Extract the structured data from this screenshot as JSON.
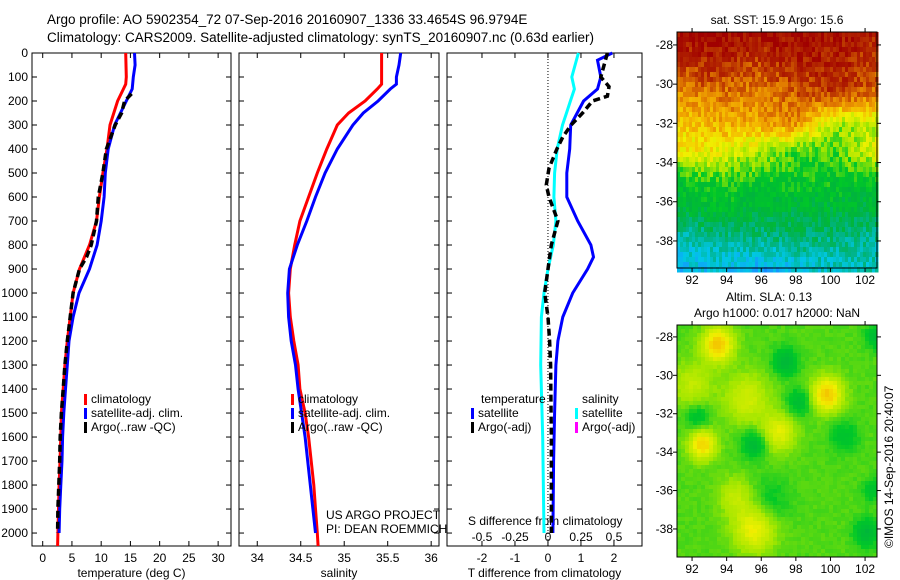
{
  "header": {
    "line1": "Argo profile: AO 5902354_72 07-Sep-2016 20160907_1336 33.4654S 96.9794E",
    "line2": "Climatology: CARS2009. Satellite-adjusted climatology: synTS_20160907.nc (0.63d earlier)"
  },
  "credits": {
    "project": "US ARGO PROJECT",
    "pi": "PI: DEAN ROEMMICH",
    "copyright": "©IMOS 14-Sep-2016 20:40:07"
  },
  "chart_data": [
    {
      "id": "temperature",
      "type": "line",
      "xlabel": "temperature (deg C)",
      "ylabel": "",
      "xlim": [
        -1.83,
        32.2
      ],
      "ylim": [
        0,
        2054
      ],
      "y_reversed": true,
      "xticks": [
        0,
        5,
        10,
        15,
        20,
        25,
        30
      ],
      "xticklabels": [
        "0",
        "5",
        "10",
        "15",
        "20",
        "25",
        "30"
      ],
      "yticks": [
        0,
        100,
        200,
        300,
        400,
        500,
        600,
        700,
        800,
        900,
        1000,
        1100,
        1200,
        1300,
        1400,
        1500,
        1600,
        1700,
        1800,
        1900,
        2000
      ],
      "yticklabels": [
        "0",
        "100",
        "200",
        "300",
        "400",
        "500",
        "600",
        "700",
        "800",
        "900",
        "1000",
        "1100",
        "1200",
        "1300",
        "1400",
        "1500",
        "1600",
        "1700",
        "1800",
        "1900",
        "2000"
      ],
      "legend": [
        "climatology",
        "satellite-adj. clim.",
        "Argo(..raw -QC)"
      ],
      "series": [
        {
          "name": "climatology",
          "color": "#ff0000",
          "dashed": false,
          "depth": [
            0,
            100,
            130,
            150,
            200,
            300,
            400,
            500,
            600,
            700,
            800,
            900,
            1000,
            1100,
            1200,
            1300,
            1400,
            1500,
            1600,
            1700,
            1800,
            1900,
            2000,
            2054
          ],
          "values": [
            14.2,
            14.3,
            14.2,
            13.8,
            12.8,
            11.5,
            11.0,
            10.3,
            9.7,
            9.2,
            8.0,
            6.3,
            5.2,
            4.7,
            4.2,
            3.8,
            3.5,
            3.2,
            3.1,
            2.95,
            2.8,
            2.7,
            2.6,
            2.55
          ]
        },
        {
          "name": "satellite-adj. clim.",
          "color": "#0000ff",
          "dashed": false,
          "depth": [
            0,
            50,
            100,
            150,
            200,
            300,
            400,
            500,
            600,
            700,
            800,
            900,
            1000,
            1100,
            1200,
            1300,
            1400,
            1500,
            1600,
            1700,
            1800,
            1900,
            2000
          ],
          "values": [
            15.7,
            15.8,
            15.5,
            15.3,
            14.3,
            12.3,
            11.2,
            10.7,
            10.5,
            10.0,
            9.3,
            8.0,
            6.2,
            5.2,
            4.5,
            4.2,
            3.9,
            3.6,
            3.4,
            3.3,
            3.1,
            2.9,
            2.8
          ]
        },
        {
          "name": "Argo(..raw -QC)",
          "color": "#000000",
          "dashed": true,
          "depth": [
            170,
            200,
            250,
            300,
            400,
            500,
            600,
            700,
            800,
            850,
            900,
            1000,
            1100,
            1200,
            1300,
            1400,
            1500,
            1600,
            1700,
            1800,
            1900,
            2000
          ],
          "values": [
            15.2,
            14.0,
            13.5,
            12.4,
            10.9,
            10.3,
            9.5,
            9.2,
            8.3,
            7.5,
            6.3,
            5.2,
            4.7,
            4.2,
            3.8,
            3.5,
            3.2,
            3.0,
            2.9,
            2.75,
            2.6,
            2.55
          ]
        }
      ]
    },
    {
      "id": "salinity",
      "type": "line",
      "xlabel": "salinity",
      "xlim": [
        33.79,
        36.09
      ],
      "ylim": [
        0,
        2054
      ],
      "y_reversed": true,
      "xticks": [
        34,
        34.5,
        35,
        35.5,
        36
      ],
      "xticklabels": [
        "34",
        "34.5",
        "35",
        "35.5",
        "36"
      ],
      "yticks": [
        0,
        100,
        200,
        300,
        400,
        500,
        600,
        700,
        800,
        900,
        1000,
        1100,
        1200,
        1300,
        1400,
        1500,
        1600,
        1700,
        1800,
        1900,
        2000
      ],
      "legend": [
        "climatology",
        "satellite-adj. clim.",
        "Argo(..raw -QC)"
      ],
      "series": [
        {
          "name": "climatology",
          "color": "#ff0000",
          "dashed": false,
          "depth": [
            0,
            100,
            130,
            150,
            200,
            250,
            300,
            400,
            500,
            600,
            700,
            800,
            900,
            1000,
            1100,
            1200,
            1300,
            1400,
            1500,
            1600,
            1700,
            1800,
            1900,
            2000,
            2054
          ],
          "values": [
            35.43,
            35.43,
            35.43,
            35.38,
            35.24,
            35.05,
            34.92,
            34.8,
            34.69,
            34.59,
            34.49,
            34.43,
            34.38,
            34.36,
            34.38,
            34.42,
            34.47,
            34.49,
            34.55,
            34.59,
            34.62,
            34.65,
            34.67,
            34.69,
            34.7
          ]
        },
        {
          "name": "satellite-adj. clim.",
          "color": "#0000ff",
          "dashed": false,
          "depth": [
            0,
            50,
            100,
            130,
            150,
            200,
            250,
            300,
            400,
            500,
            600,
            700,
            800,
            900,
            1000,
            1100,
            1200,
            1300,
            1400,
            1500,
            1600,
            1700,
            1800,
            1900,
            2000
          ],
          "values": [
            35.65,
            35.63,
            35.6,
            35.6,
            35.53,
            35.39,
            35.22,
            35.1,
            34.92,
            34.78,
            34.67,
            34.57,
            34.46,
            34.37,
            34.35,
            34.36,
            34.39,
            34.44,
            34.47,
            34.51,
            34.55,
            34.58,
            34.61,
            34.64,
            34.67
          ]
        }
      ]
    },
    {
      "id": "difference",
      "type": "line",
      "xlabel": "T difference from climatology",
      "x2label": "S difference from climatology",
      "xlim": [
        -3.06,
        2.85
      ],
      "x2lim": [
        -0.765,
        0.712
      ],
      "ylim": [
        0,
        2054
      ],
      "y_reversed": true,
      "xticks": [
        -2,
        -1,
        0,
        1,
        2
      ],
      "xticklabels": [
        "-2",
        "-1",
        "0",
        "1",
        "2"
      ],
      "x2ticks": [
        -0.5,
        -0.25,
        0,
        0.25,
        0.5
      ],
      "x2ticklabels": [
        "-0.5",
        "-0.25",
        "0",
        "0.25",
        "0.5"
      ],
      "yticks": [
        0,
        100,
        200,
        300,
        400,
        500,
        600,
        700,
        800,
        900,
        1000,
        1100,
        1200,
        1300,
        1400,
        1500,
        1600,
        1700,
        1800,
        1900,
        2000
      ],
      "legend": {
        "temperature_title": "temperature",
        "salinity_title": "salinity",
        "temperature": [
          {
            "label": "satellite",
            "color": "#0000ff"
          },
          {
            "label": "Argo(-adj)",
            "color": "#000000"
          }
        ],
        "salinity": [
          {
            "label": "satellite",
            "color": "#00ffff"
          },
          {
            "label": "Argo(-adj)",
            "color": "#ff00ff"
          }
        ]
      },
      "series": [
        {
          "name": "T satellite",
          "axis": "T",
          "color": "#0000ff",
          "dashed": false,
          "depth": [
            0,
            30,
            100,
            150,
            200,
            300,
            400,
            500,
            600,
            700,
            800,
            850,
            900,
            1000,
            1100,
            1200,
            1300,
            1500,
            1700,
            2000
          ],
          "values": [
            1.95,
            1.5,
            1.6,
            1.5,
            1.08,
            0.69,
            0.66,
            0.57,
            0.57,
            0.9,
            1.3,
            1.38,
            1.2,
            0.75,
            0.45,
            0.3,
            0.24,
            0.2,
            0.17,
            0.15
          ]
        },
        {
          "name": "S satellite",
          "axis": "S",
          "color": "#00ffff",
          "dashed": false,
          "depth": [
            0,
            100,
            150,
            200,
            250,
            300,
            400,
            500,
            600,
            700,
            800,
            900,
            1000,
            1100,
            1300,
            1600,
            2000
          ],
          "values": [
            0.23,
            0.18,
            0.2,
            0.17,
            0.14,
            0.11,
            0.07,
            0.05,
            0.045,
            0.06,
            0.04,
            0.0,
            -0.03,
            -0.05,
            -0.055,
            -0.04,
            -0.03
          ]
        },
        {
          "name": "T Argo(-adj)",
          "axis": "T",
          "color": "#000000",
          "dashed": true,
          "depth": [
            0,
            50,
            100,
            140,
            180,
            200,
            250,
            300,
            350,
            400,
            480,
            550,
            600,
            700,
            800,
            900,
            1000,
            1100,
            1200,
            1300,
            1600,
            2000
          ],
          "values": [
            1.8,
            1.7,
            1.6,
            1.85,
            1.8,
            1.35,
            1.05,
            0.7,
            0.45,
            0.27,
            0.03,
            -0.05,
            0.03,
            0.3,
            0.1,
            0.0,
            -0.1,
            0.0,
            0.05,
            0.08,
            0.1,
            0.1
          ]
        }
      ]
    },
    {
      "id": "sst-map",
      "type": "heatmap",
      "title": "sat. SST: 15.9 Argo: 15.6",
      "xlim": [
        91.13,
        102.69
      ],
      "ylim": [
        -39.38,
        -27.34
      ],
      "xticks": [
        92,
        94,
        96,
        98,
        100,
        102
      ],
      "xticklabels": [
        "92",
        "94",
        "96",
        "98",
        "100",
        "102"
      ],
      "yticks": [
        -28,
        -30,
        -32,
        -34,
        -36,
        -38
      ],
      "yticklabels": [
        "-28",
        "-30",
        "-32",
        "-34",
        "-36",
        "-38"
      ],
      "colormap": [
        "#0a3cf0",
        "#1496ff",
        "#00c8e6",
        "#00b48c",
        "#00b43c",
        "#00c828",
        "#a0e600",
        "#f0f000",
        "#f5b400",
        "#e07800",
        "#b42800",
        "#a00000"
      ],
      "grid_lat": [
        -27.5,
        -29,
        -30.5,
        -32,
        -33.5,
        -35,
        -36.5,
        -38,
        -39.4
      ],
      "grid_lon": [
        91.1,
        93.4,
        95.7,
        98,
        100.3,
        102.7
      ],
      "grid": [
        [
          0.98,
          0.98,
          0.95,
          0.98,
          0.96,
          0.94
        ],
        [
          0.88,
          0.93,
          0.88,
          0.93,
          0.94,
          0.88
        ],
        [
          0.78,
          0.82,
          0.8,
          0.85,
          0.9,
          0.82
        ],
        [
          0.68,
          0.74,
          0.75,
          0.78,
          0.55,
          0.58
        ],
        [
          0.63,
          0.64,
          0.56,
          0.48,
          0.48,
          0.62
        ],
        [
          0.42,
          0.46,
          0.45,
          0.44,
          0.44,
          0.42
        ],
        [
          0.36,
          0.4,
          0.38,
          0.37,
          0.38,
          0.36
        ],
        [
          0.22,
          0.26,
          0.27,
          0.3,
          0.28,
          0.26
        ],
        [
          0.16,
          0.18,
          0.12,
          0.18,
          0.22,
          0.24
        ]
      ]
    },
    {
      "id": "sla-map",
      "type": "heatmap",
      "title": "Altim. SLA: 0.13",
      "subtitle": "Argo h1000: 0.017 h2000: NaN",
      "xlim": [
        91.13,
        102.69
      ],
      "ylim": [
        -39.46,
        -27.38
      ],
      "xticks": [
        92,
        94,
        96,
        98,
        100,
        102
      ],
      "xticklabels": [
        "92",
        "94",
        "96",
        "98",
        "100",
        "102"
      ],
      "yticks": [
        -28,
        -30,
        -32,
        -34,
        -36,
        -38
      ],
      "yticklabels": [
        "-28",
        "-30",
        "-32",
        "-34",
        "-36",
        "-38"
      ],
      "colormap": [
        "#0a3cf0",
        "#1496ff",
        "#00c8e6",
        "#00b48c",
        "#00b43c",
        "#00c828",
        "#a0e600",
        "#f0f000",
        "#f5b400",
        "#e07800",
        "#b42800",
        "#a00000"
      ],
      "base": 0.5,
      "features": [
        {
          "lon": 93.5,
          "lat": -28.4,
          "amp": 0.2,
          "r": 0.9
        },
        {
          "lon": 99.8,
          "lat": -31.0,
          "amp": 0.2,
          "r": 0.9
        },
        {
          "lon": 92.6,
          "lat": -33.6,
          "amp": 0.18,
          "r": 0.8
        },
        {
          "lon": 95.6,
          "lat": -38.0,
          "amp": 0.14,
          "r": 1.2
        },
        {
          "lon": 95.2,
          "lat": -31.2,
          "amp": 0.1,
          "r": 1.3
        },
        {
          "lon": 97.0,
          "lat": -33.0,
          "amp": 0.12,
          "r": 1.0
        },
        {
          "lon": 94.5,
          "lat": -36.3,
          "amp": 0.08,
          "r": 1.0
        },
        {
          "lon": 92.0,
          "lat": -30.5,
          "amp": 0.08,
          "r": 1.2
        },
        {
          "lon": 97.4,
          "lat": -29.3,
          "amp": -0.12,
          "r": 0.7
        },
        {
          "lon": 98.2,
          "lat": -31.4,
          "amp": -0.1,
          "r": 0.7
        },
        {
          "lon": 95.6,
          "lat": -33.6,
          "amp": -0.12,
          "r": 0.7
        },
        {
          "lon": 92.3,
          "lat": -32.2,
          "amp": -0.08,
          "r": 0.7
        },
        {
          "lon": 102.1,
          "lat": -38.2,
          "amp": -0.12,
          "r": 0.7
        },
        {
          "lon": 100.8,
          "lat": -33.2,
          "amp": -0.07,
          "r": 0.8
        },
        {
          "lon": 102.6,
          "lat": -28.0,
          "amp": -0.1,
          "r": 0.6
        },
        {
          "lon": 102.4,
          "lat": -36.0,
          "amp": -0.07,
          "r": 0.6
        },
        {
          "lon": 96.5,
          "lat": -36.5,
          "amp": -0.05,
          "r": 1.2
        }
      ]
    }
  ]
}
